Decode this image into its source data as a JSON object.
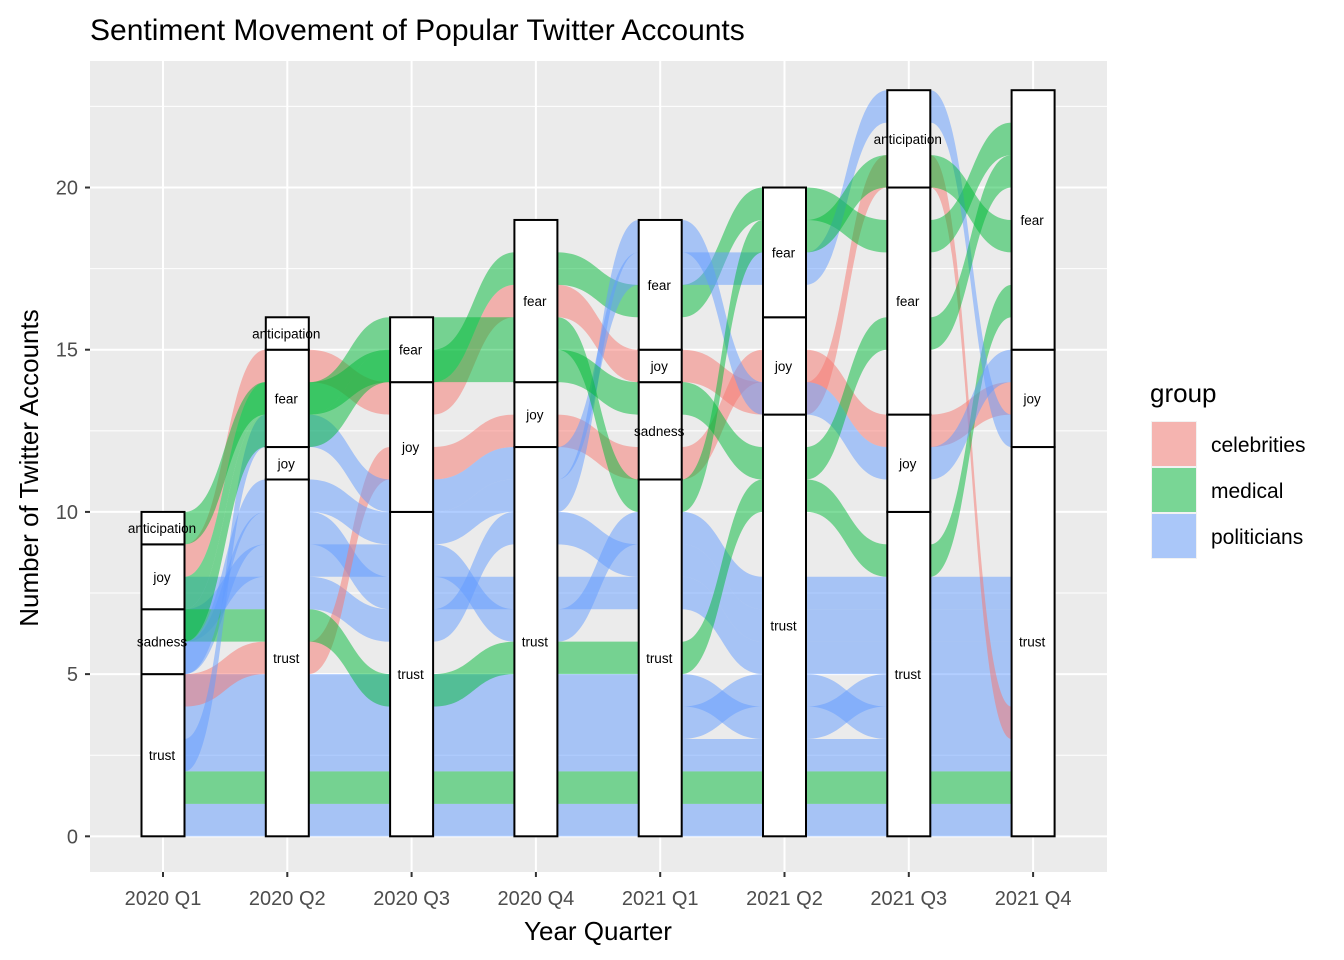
{
  "chart_data": {
    "type": "alluvial",
    "title": "Sentiment Movement of Popular Twitter Accounts",
    "xlabel": "Year Quarter",
    "ylabel": "Number of Twitter Accounts",
    "ylim": [
      -1.1,
      23.9
    ],
    "yticks": [
      0,
      5,
      10,
      15,
      20
    ],
    "grid": true,
    "legend": {
      "title": "group",
      "placement": "right",
      "items": [
        {
          "name": "celebrities",
          "color": "#F8766D"
        },
        {
          "name": "medical",
          "color": "#00BA38"
        },
        {
          "name": "politicians",
          "color": "#619CFF"
        }
      ]
    },
    "categories": [
      "2020 Q1",
      "2020 Q2",
      "2020 Q3",
      "2020 Q4",
      "2021 Q1",
      "2021 Q2",
      "2021 Q3",
      "2021 Q4"
    ],
    "strata": [
      [
        {
          "label": "trust",
          "value": 5
        },
        {
          "label": "sadness",
          "value": 2
        },
        {
          "label": "joy",
          "value": 2
        },
        {
          "label": "anticipation",
          "value": 1
        }
      ],
      [
        {
          "label": "trust",
          "value": 11
        },
        {
          "label": "joy",
          "value": 1
        },
        {
          "label": "fear",
          "value": 3
        },
        {
          "label": "anticipation",
          "value": 1
        }
      ],
      [
        {
          "label": "trust",
          "value": 10
        },
        {
          "label": "joy",
          "value": 4
        },
        {
          "label": "fear",
          "value": 2
        }
      ],
      [
        {
          "label": "trust",
          "value": 12
        },
        {
          "label": "joy",
          "value": 2
        },
        {
          "label": "fear",
          "value": 5
        }
      ],
      [
        {
          "label": "trust",
          "value": 11
        },
        {
          "label": "sadness",
          "value": 3
        },
        {
          "label": "joy",
          "value": 1
        },
        {
          "label": "fear",
          "value": 4
        }
      ],
      [
        {
          "label": "trust",
          "value": 13
        },
        {
          "label": "joy",
          "value": 3
        },
        {
          "label": "fear",
          "value": 4
        }
      ],
      [
        {
          "label": "trust",
          "value": 10
        },
        {
          "label": "joy",
          "value": 3
        },
        {
          "label": "fear",
          "value": 7
        },
        {
          "label": "anticipation",
          "value": 3
        }
      ],
      [
        {
          "label": "trust",
          "value": 12
        },
        {
          "label": "joy",
          "value": 3
        },
        {
          "label": "fear",
          "value": 8
        }
      ]
    ],
    "flows": [
      {
        "group": "politicians",
        "y": [
          [
            0,
            1
          ],
          [
            0,
            1
          ],
          [
            0,
            1
          ],
          [
            0,
            1
          ],
          [
            0,
            1
          ],
          [
            0,
            1
          ],
          [
            0,
            1
          ],
          [
            0,
            1
          ]
        ]
      },
      {
        "group": "medical",
        "y": [
          [
            1,
            2
          ],
          [
            1,
            2
          ],
          [
            1,
            2
          ],
          [
            1,
            2
          ],
          [
            1,
            2
          ],
          [
            1,
            2
          ],
          [
            1,
            2
          ],
          [
            1,
            2
          ]
        ]
      },
      {
        "group": "politicians",
        "y": [
          [
            2,
            3
          ],
          [
            2,
            3
          ],
          [
            2,
            3
          ],
          [
            2,
            3
          ],
          [
            2,
            3
          ],
          [
            2,
            3
          ],
          [
            2,
            3
          ],
          [
            2,
            3
          ]
        ]
      },
      {
        "group": "politicians",
        "y": [
          [
            3,
            4
          ],
          [
            3,
            4
          ],
          [
            3,
            4
          ],
          [
            3,
            4
          ],
          [
            3,
            4
          ],
          [
            4,
            5
          ],
          [
            3,
            4
          ],
          [
            3,
            4
          ]
        ]
      },
      {
        "group": "politicians",
        "y": [
          [
            4,
            5
          ],
          [
            4,
            5
          ],
          [
            4,
            5
          ],
          [
            4,
            5
          ],
          [
            4,
            5
          ],
          [
            3,
            4
          ],
          [
            4,
            5
          ],
          [
            4,
            5
          ]
        ]
      },
      {
        "group": "politicians",
        "y": [
          [
            5,
            6
          ],
          [
            9,
            10
          ],
          [
            7,
            8
          ],
          [
            7,
            8
          ],
          [
            7,
            8
          ],
          [
            5,
            6
          ],
          [
            5,
            6
          ],
          [
            5,
            6
          ]
        ]
      },
      {
        "group": "politicians",
        "y": [
          [
            6,
            7
          ],
          [
            8,
            9
          ],
          [
            8,
            9
          ],
          [
            6,
            7
          ],
          [
            9,
            10
          ],
          [
            7,
            8
          ],
          [
            7,
            8
          ],
          [
            7,
            8
          ]
        ]
      },
      {
        "group": "politicians",
        "y": [
          [
            7,
            8
          ],
          [
            7,
            8
          ],
          [
            6,
            7
          ],
          [
            9,
            10
          ],
          [
            8,
            9
          ],
          [
            6,
            7
          ],
          [
            6,
            7
          ],
          [
            6,
            7
          ]
        ]
      },
      {
        "group": "celebrities",
        "y": [
          [
            4,
            5
          ],
          [
            5,
            6
          ],
          [
            11,
            12
          ],
          [
            12,
            13
          ],
          [
            11,
            12
          ],
          [
            14,
            15
          ],
          [
            12,
            13
          ],
          [
            13,
            14
          ]
        ]
      },
      {
        "group": "celebrities",
        "y": [
          [
            8,
            9
          ],
          [
            14,
            15
          ],
          [
            13,
            14
          ],
          [
            16,
            17
          ],
          [
            14,
            15
          ],
          [
            13,
            14
          ],
          [
            20,
            21
          ],
          [
            3,
            4
          ]
        ]
      },
      {
        "group": "medical",
        "y": [
          [
            9,
            10
          ],
          [
            13,
            14
          ],
          [
            14,
            15
          ],
          [
            17,
            18
          ],
          [
            16,
            17
          ],
          [
            19,
            20
          ],
          [
            18,
            19
          ],
          [
            21,
            22
          ]
        ]
      },
      {
        "group": "medical",
        "y": [
          [
            6,
            7
          ],
          [
            6,
            7
          ],
          [
            4,
            5
          ],
          [
            5,
            6
          ],
          [
            5,
            6
          ],
          [
            10,
            11
          ],
          [
            8,
            9
          ],
          [
            16,
            17
          ]
        ]
      },
      {
        "group": "politicians",
        "y": [
          [
            2,
            3
          ],
          [
            12,
            13
          ],
          [
            10,
            11
          ],
          [
            11,
            12
          ],
          [
            17,
            18
          ],
          [
            17,
            18
          ],
          [
            22,
            23
          ],
          [
            12,
            13
          ]
        ]
      },
      {
        "group": "politicians",
        "y": [
          [
            5,
            6
          ],
          [
            10,
            11
          ],
          [
            9,
            10
          ],
          [
            10,
            11
          ],
          [
            18,
            19
          ],
          [
            13,
            14
          ],
          [
            11,
            12
          ],
          [
            14,
            15
          ]
        ]
      },
      {
        "group": "medical",
        "y": [
          [
            7,
            8
          ],
          [
            13,
            14
          ],
          [
            15,
            16
          ],
          [
            15,
            16
          ],
          [
            10,
            11
          ],
          [
            18,
            19
          ],
          [
            20,
            21
          ],
          [
            18,
            19
          ]
        ]
      },
      {
        "group": "medical",
        "y": [
          [
            6,
            7
          ],
          [
            12,
            13
          ],
          [
            14,
            15
          ],
          [
            14,
            15
          ],
          [
            13,
            14
          ],
          [
            11,
            12
          ],
          [
            15,
            16
          ],
          [
            20,
            21
          ]
        ]
      }
    ]
  }
}
